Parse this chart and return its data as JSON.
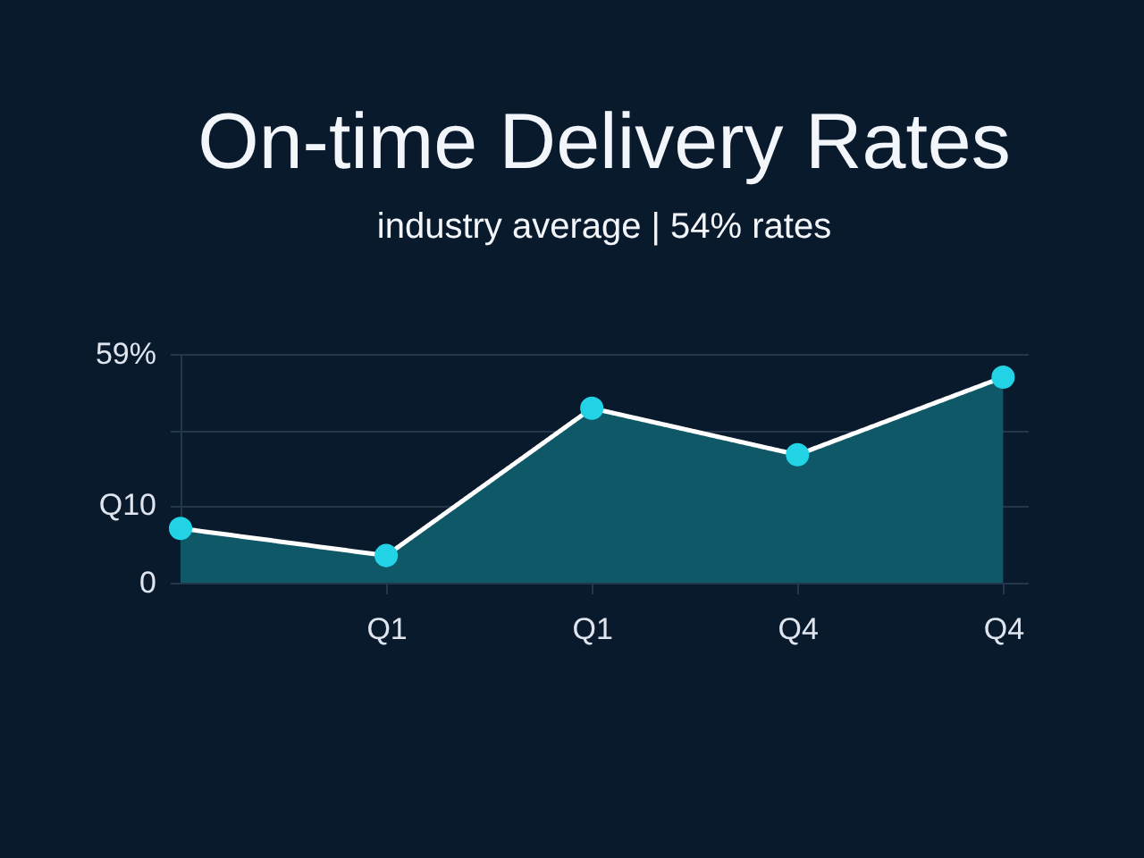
{
  "chart_data": {
    "type": "area",
    "title": "On-time Delivery Rates",
    "subtitle": "industry average | 54% rates",
    "categories": [
      null,
      "Q1",
      "Q1",
      "Q4",
      "Q4"
    ],
    "series": [
      {
        "color": "#0e5868",
        "values": [
          14,
          7,
          45,
          33,
          53
        ]
      }
    ],
    "ylim": [
      0,
      59
    ],
    "yticks": [
      0,
      {
        "value": 20,
        "label": "Q10"
      },
      {
        "value": 39,
        "label": null
      },
      {
        "value": 59,
        "label": "59%"
      }
    ],
    "grid": "y",
    "marker": "circle",
    "line_style": "solid"
  }
}
